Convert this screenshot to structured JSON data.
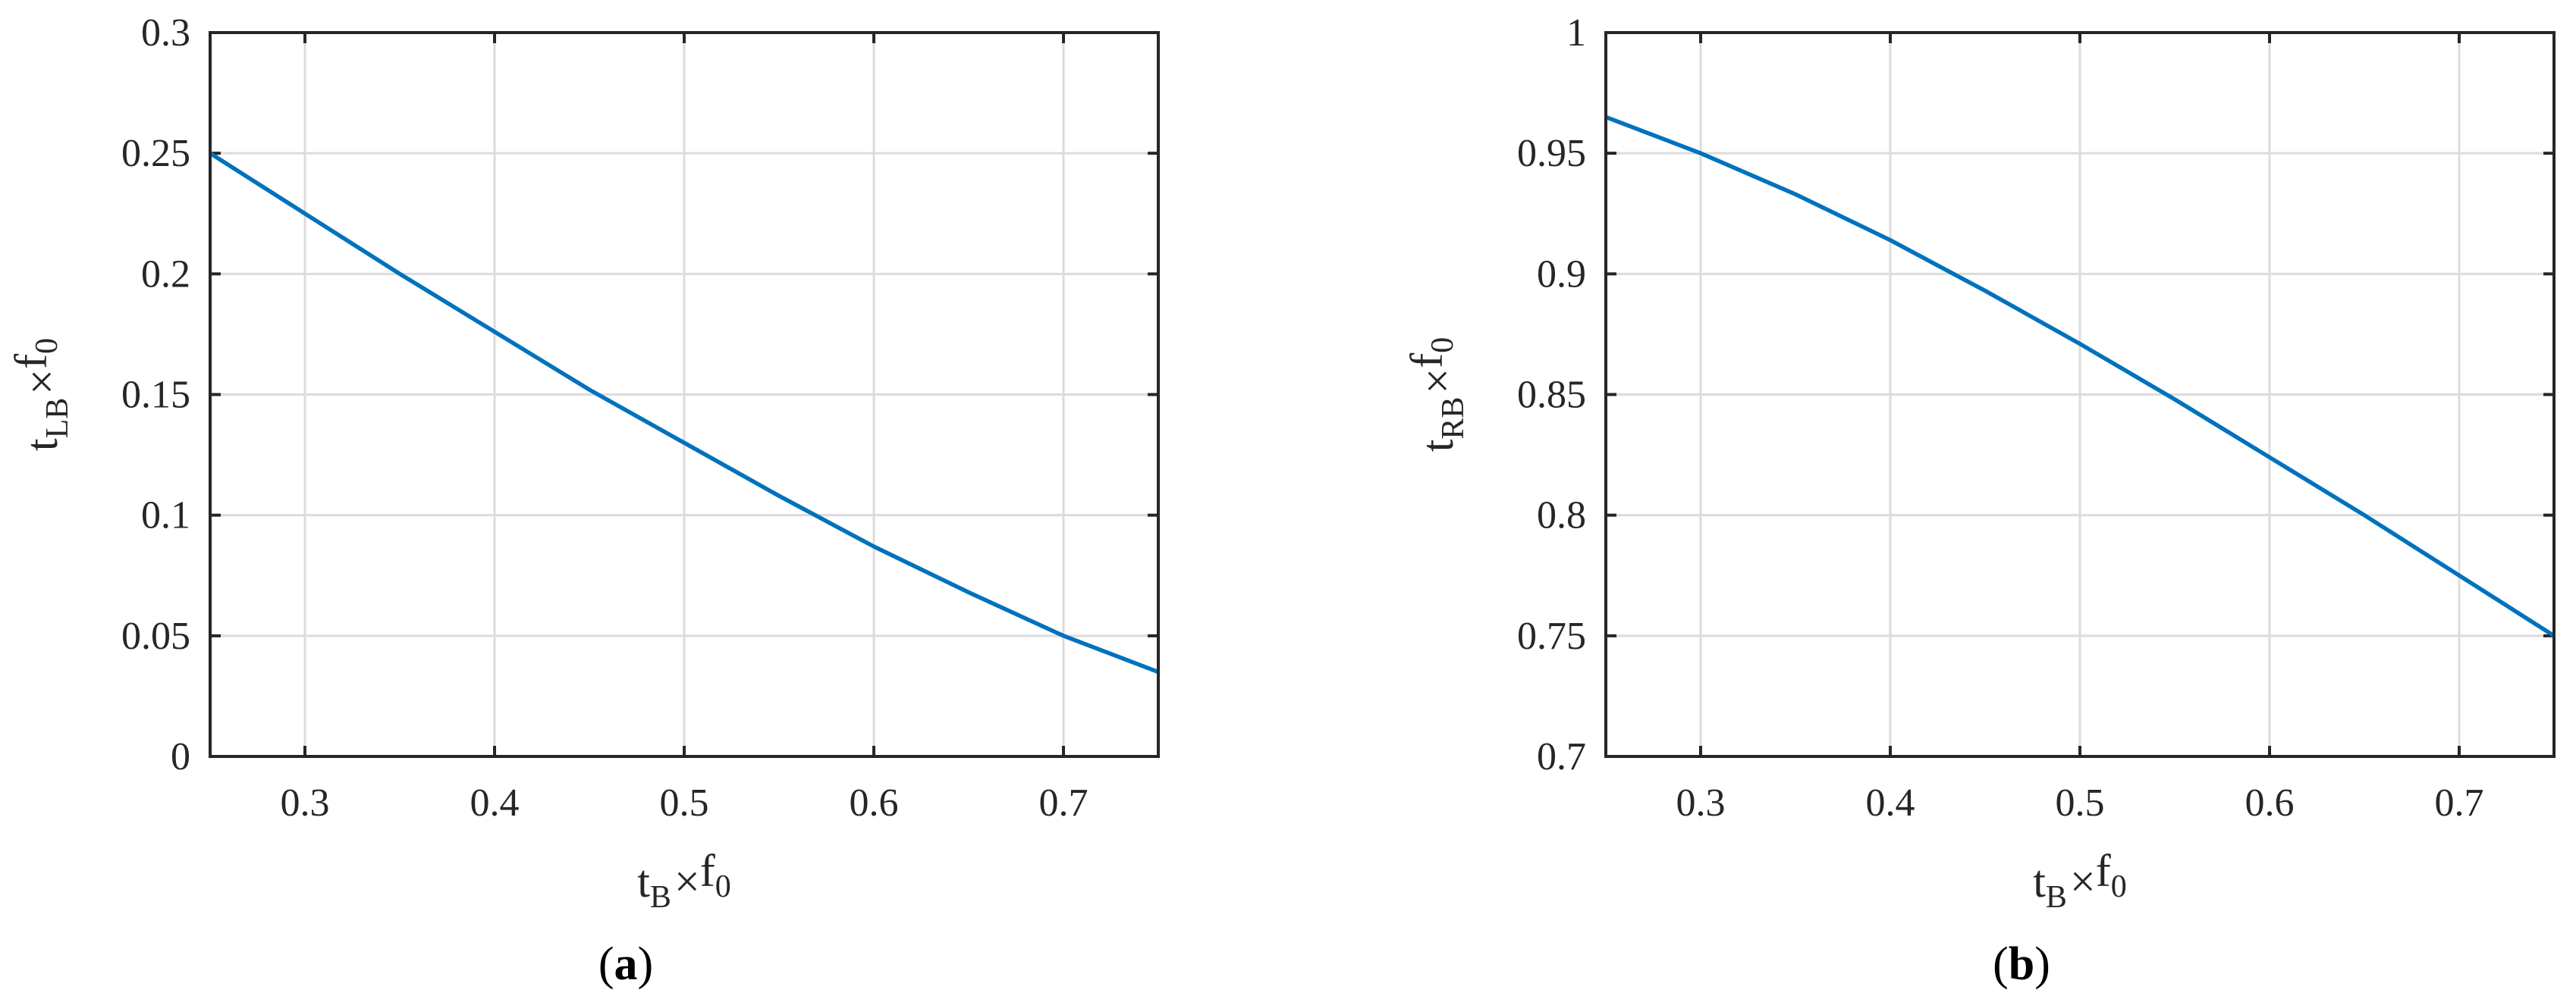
{
  "chart_data": [
    {
      "type": "line",
      "panel_label": "a",
      "xlabel": {
        "main": "t",
        "sub": "B",
        "op": "×",
        "main2": "f",
        "sub2": "0"
      },
      "ylabel": {
        "main": "t",
        "sub": "LB",
        "op": "×",
        "main2": "f",
        "sub2": "0"
      },
      "xlim": [
        0.25,
        0.75
      ],
      "ylim": [
        0,
        0.3
      ],
      "xticks": [
        "0.3",
        "0.4",
        "0.5",
        "0.6",
        "0.7"
      ],
      "yticks": [
        "0",
        "0.05",
        "0.1",
        "0.15",
        "0.2",
        "0.25",
        "0.3"
      ],
      "grid": true,
      "series_color": "#0072bd",
      "x": [
        0.25,
        0.3,
        0.35,
        0.4,
        0.45,
        0.5,
        0.55,
        0.6,
        0.65,
        0.7,
        0.75
      ],
      "y": [
        0.25,
        0.225,
        0.2,
        0.176,
        0.152,
        0.13,
        0.108,
        0.087,
        0.068,
        0.05,
        0.035
      ]
    },
    {
      "type": "line",
      "panel_label": "b",
      "xlabel": {
        "main": "t",
        "sub": "B",
        "op": "×",
        "main2": "f",
        "sub2": "0"
      },
      "ylabel": {
        "main": "t",
        "sub": "RB",
        "op": "×",
        "main2": "f",
        "sub2": "0"
      },
      "xlim": [
        0.25,
        0.75
      ],
      "ylim": [
        0.7,
        1
      ],
      "xticks": [
        "0.3",
        "0.4",
        "0.5",
        "0.6",
        "0.7"
      ],
      "yticks": [
        "0.7",
        "0.75",
        "0.8",
        "0.85",
        "0.9",
        "0.95",
        "1"
      ],
      "grid": true,
      "series_color": "#0072bd",
      "x": [
        0.25,
        0.3,
        0.35,
        0.4,
        0.45,
        0.5,
        0.55,
        0.6,
        0.65,
        0.7,
        0.75
      ],
      "y": [
        0.965,
        0.95,
        0.933,
        0.914,
        0.893,
        0.871,
        0.848,
        0.824,
        0.8,
        0.775,
        0.75
      ]
    }
  ]
}
